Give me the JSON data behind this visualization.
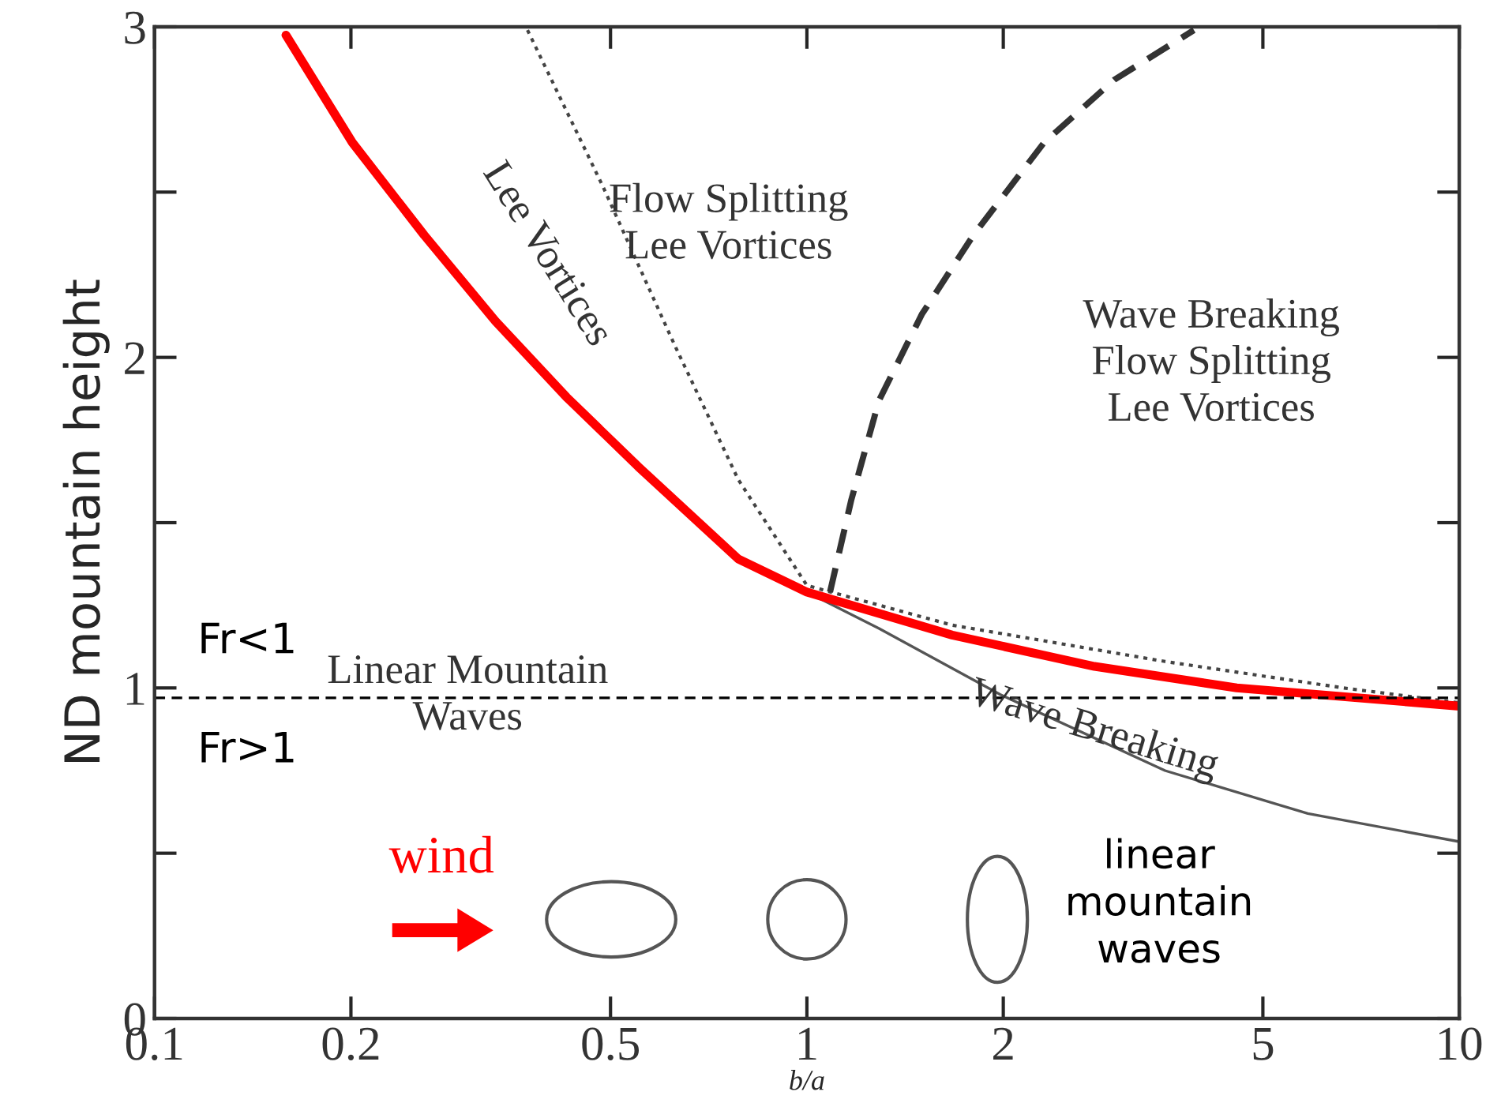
{
  "chart_data": {
    "type": "line",
    "xlabel": "b/a",
    "ylabel": "ND mountain height",
    "log": "x",
    "xlim": [
      0.1,
      10
    ],
    "xticks": [
      0.1,
      0.2,
      0.5,
      1,
      2,
      5,
      10
    ],
    "ylim": [
      0,
      3
    ],
    "yticks": [
      0,
      {
        "value": 0.5,
        "label": null
      },
      1,
      {
        "value": 1.5,
        "label": null
      },
      2,
      {
        "value": 2.5,
        "label": null
      },
      3
    ],
    "grid": false,
    "marker": "none",
    "series": [
      {
        "color": "#555555",
        "line_style": "solid",
        "x": [
          1.0,
          1.29,
          1.98,
          3.54,
          5.86,
          10
        ],
        "values": [
          1.29,
          1.18,
          0.98,
          0.75,
          0.62,
          0.535
        ]
      },
      {
        "color": "#444444",
        "line_style": "dotted",
        "x": [
          0.373,
          0.486,
          0.626,
          0.785,
          1.0,
          1.67,
          3.54,
          6.65,
          10
        ],
        "values": [
          2.99,
          2.52,
          2.04,
          1.63,
          1.31,
          1.19,
          1.08,
          1.0,
          0.955
        ]
      },
      {
        "color": "#333333",
        "line_style": "dashed",
        "x": [
          1.085,
          1.17,
          1.29,
          1.5,
          1.8,
          2.31,
          2.96,
          3.92
        ],
        "values": [
          1.29,
          1.57,
          1.87,
          2.13,
          2.37,
          2.65,
          2.84,
          2.99
        ]
      },
      {
        "color": "#ff0000",
        "line_style": "solid",
        "x": [
          0.159,
          0.201,
          0.259,
          0.333,
          0.428,
          0.551,
          0.785,
          1.0,
          1.67,
          2.76,
          4.56,
          10
        ],
        "values": [
          2.975,
          2.65,
          2.37,
          2.11,
          1.88,
          1.67,
          1.39,
          1.29,
          1.16,
          1.065,
          1.0,
          0.945
        ]
      }
    ],
    "ref_lines": [
      {
        "axis": "y",
        "value": 0.97,
        "color": "#000000",
        "line_style": "dashed"
      }
    ],
    "annotations": [
      "Lee Vortices",
      "Flow Splitting\nLee Vortices",
      "Wave Breaking\nFlow Splitting\nLee Vortices",
      "Fr<1",
      "Linear Mountain\nWaves",
      "Fr>1",
      "Wave Breaking",
      "wind",
      "linear\nmountain\nwaves"
    ]
  }
}
